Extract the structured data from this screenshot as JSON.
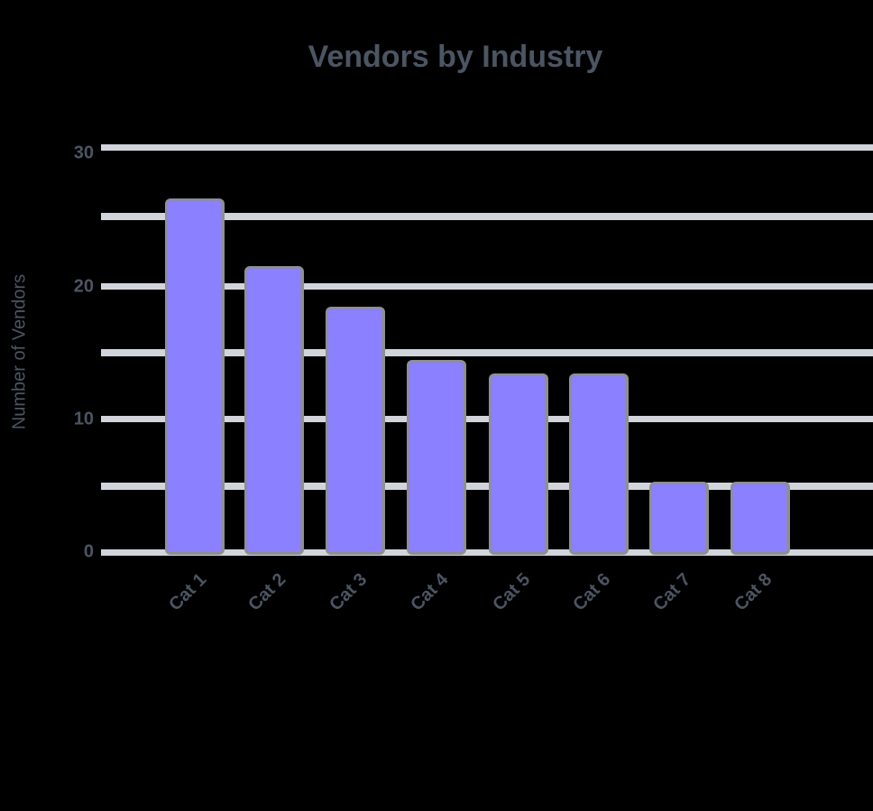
{
  "chart_data": {
    "type": "bar",
    "title": "Vendors by Industry",
    "xlabel": "",
    "ylabel": "Number of Vendors",
    "ylim": [
      0,
      30
    ],
    "yticks": [
      0,
      10,
      20,
      30
    ],
    "minor_gridlines": [
      5,
      15,
      25
    ],
    "grid": true,
    "legend": null,
    "bar_color": "#8b80ff",
    "categories": [
      "Cat 1",
      "Cat 2",
      "Cat 3",
      "Cat 4",
      "Cat 5",
      "Cat 6",
      "Cat 7",
      "Cat 8"
    ],
    "values": [
      26,
      21,
      18,
      14,
      13,
      13,
      5,
      5
    ]
  },
  "labels": {
    "title": "Vendors by Industry",
    "ylabel": "Number of Vendors",
    "yticks": [
      "0",
      "10",
      "20",
      "30"
    ]
  }
}
